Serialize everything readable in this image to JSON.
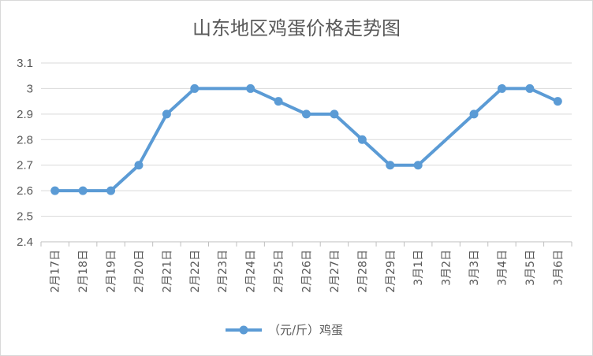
{
  "chart_data": {
    "type": "line",
    "title": "山东地区鸡蛋价格走势图",
    "categories": [
      "2月17日",
      "2月18日",
      "2月19日",
      "2月20日",
      "2月21日",
      "2月22日",
      "2月23日",
      "2月24日",
      "2月25日",
      "2月26日",
      "2月27日",
      "2月28日",
      "2月29日",
      "3月1日",
      "3月2日",
      "3月3日",
      "3月4日",
      "3月5日",
      "3月6日"
    ],
    "series": [
      {
        "name": "（元/斤）鸡蛋",
        "color": "#5b9bd5",
        "values": [
          2.6,
          2.6,
          2.6,
          2.7,
          2.9,
          3.0,
          null,
          3.0,
          2.95,
          2.9,
          2.9,
          2.8,
          2.7,
          2.7,
          null,
          2.9,
          3.0,
          3.0,
          2.95
        ]
      }
    ],
    "y_ticks": [
      "2.4",
      "2.5",
      "2.6",
      "2.7",
      "2.8",
      "2.9",
      "3",
      "3.1"
    ],
    "ylim": [
      2.4,
      3.1
    ],
    "grid": true,
    "legend_position": "bottom"
  }
}
